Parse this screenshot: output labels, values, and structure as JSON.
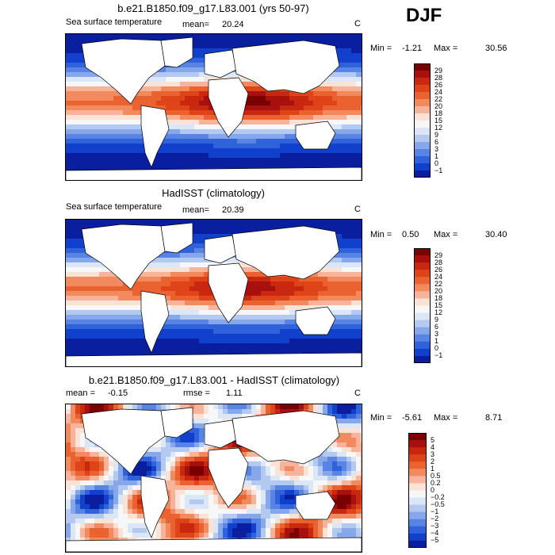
{
  "figure": {
    "season": "DJF"
  },
  "chart_data": [
    {
      "type": "heatmap",
      "title": "b.e21.B1850.f09_g17.L83.001 (yrs 50-97)",
      "variable": "Sea surface temperature",
      "mean_label": "mean=",
      "mean": "20.24",
      "units": "C",
      "min_label": "Min =",
      "min": "-1.21",
      "max_label": "Max =",
      "max": "30.56",
      "colorbar_ticks": [
        "29",
        "28",
        "26",
        "24",
        "22",
        "20",
        "18",
        "15",
        "12",
        "9",
        "6",
        "3",
        "1",
        "0",
        "−1"
      ],
      "colorbar_colors": [
        "#7a0000",
        "#a80f0f",
        "#c8280f",
        "#de4418",
        "#ea6230",
        "#f28a60",
        "#f7b49a",
        "#fae3d6",
        "#f7f7f7",
        "#dbe6f7",
        "#b4c9f0",
        "#86a8ea",
        "#5885e4",
        "#3062dc",
        "#1040cc",
        "#0a1fa0"
      ],
      "field": "model"
    },
    {
      "type": "heatmap",
      "title": "HadISST (climatology)",
      "variable": "Sea surface temperature",
      "mean_label": "mean=",
      "mean": "20.39",
      "units": "C",
      "min_label": "Min =",
      "min": "0.50",
      "max_label": "Max =",
      "max": "30.40",
      "colorbar_ticks": [
        "29",
        "28",
        "26",
        "24",
        "22",
        "20",
        "18",
        "15",
        "12",
        "9",
        "6",
        "3",
        "1",
        "0",
        "−1"
      ],
      "colorbar_colors": [
        "#7a0000",
        "#a80f0f",
        "#c8280f",
        "#de4418",
        "#ea6230",
        "#f28a60",
        "#f7b49a",
        "#fae3d6",
        "#f7f7f7",
        "#dbe6f7",
        "#b4c9f0",
        "#86a8ea",
        "#5885e4",
        "#3062dc",
        "#1040cc",
        "#0a1fa0"
      ],
      "field": "obs"
    },
    {
      "type": "heatmap",
      "title": "b.e21.B1850.f09_g17.L83.001 - HadISST (climatology)",
      "mean_label": "mean =",
      "mean": "-0.15",
      "rmse_label": "rmse =",
      "rmse": "1.11",
      "units": "C",
      "min_label": "Min =",
      "min": "-5.61",
      "max_label": "Max =",
      "max": "8.71",
      "colorbar_ticks": [
        "5",
        "4",
        "3",
        "2",
        "1",
        "0.5",
        "0.2",
        "0",
        "−0.2",
        "−0.5",
        "−1",
        "−2",
        "−3",
        "−4",
        "−5"
      ],
      "colorbar_colors": [
        "#7a0000",
        "#a80f0f",
        "#c8280f",
        "#de4418",
        "#ea6230",
        "#f28a60",
        "#f7b49a",
        "#fae3d6",
        "#f7f7f7",
        "#dbe6f7",
        "#b4c9f0",
        "#86a8ea",
        "#5885e4",
        "#3062dc",
        "#1040cc",
        "#0a1fa0"
      ],
      "field": "diff"
    }
  ]
}
